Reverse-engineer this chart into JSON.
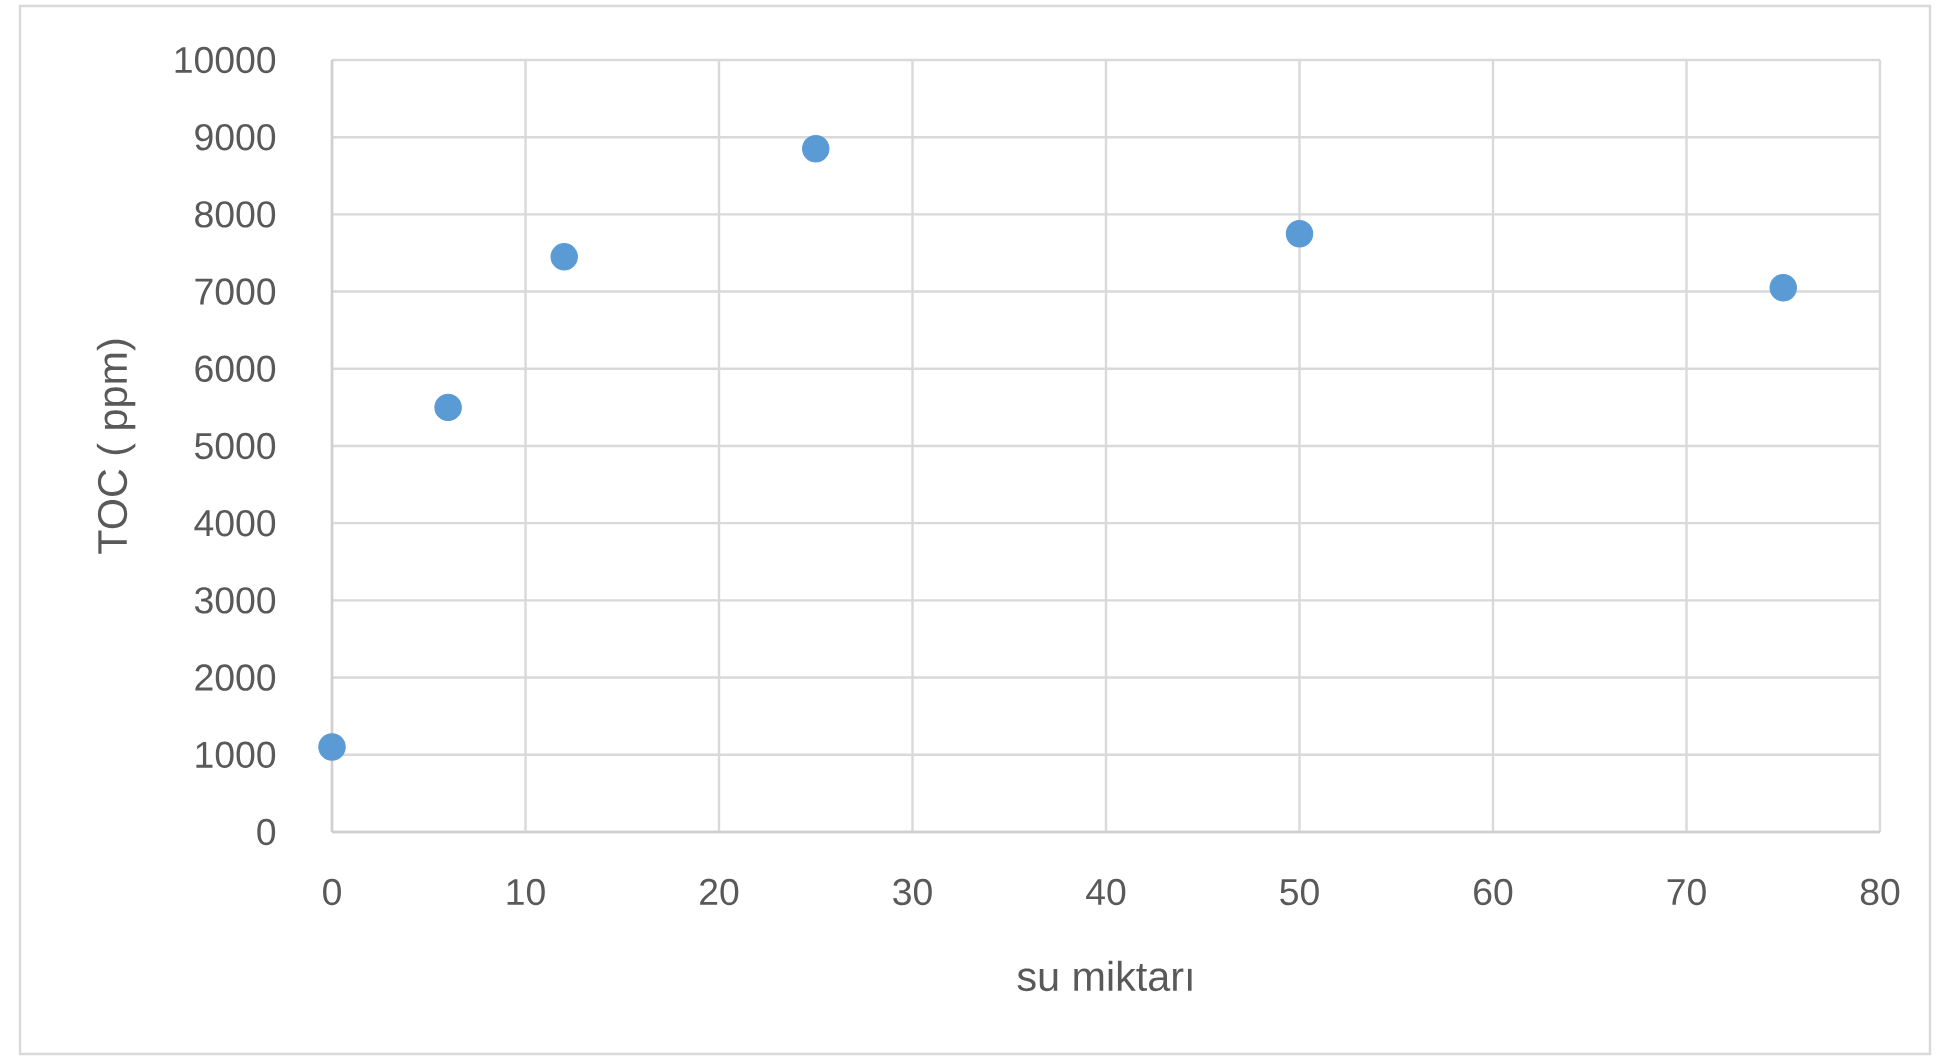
{
  "chart_data": {
    "type": "scatter",
    "xlabel": "su miktarı",
    "ylabel": "TOC ( ppm)",
    "x": [
      0,
      6,
      12,
      25,
      50,
      75
    ],
    "values": [
      1100,
      5500,
      7450,
      8850,
      7750,
      7050
    ],
    "color": "#5b9bd5",
    "xlim": [
      0,
      80
    ],
    "ylim": [
      0,
      10000
    ],
    "xticks": [
      0,
      10,
      20,
      30,
      40,
      50,
      60,
      70,
      80
    ],
    "yticks": [
      0,
      1000,
      2000,
      3000,
      4000,
      5000,
      6000,
      7000,
      8000,
      9000,
      10000
    ],
    "grid": true,
    "marker": "circle"
  }
}
